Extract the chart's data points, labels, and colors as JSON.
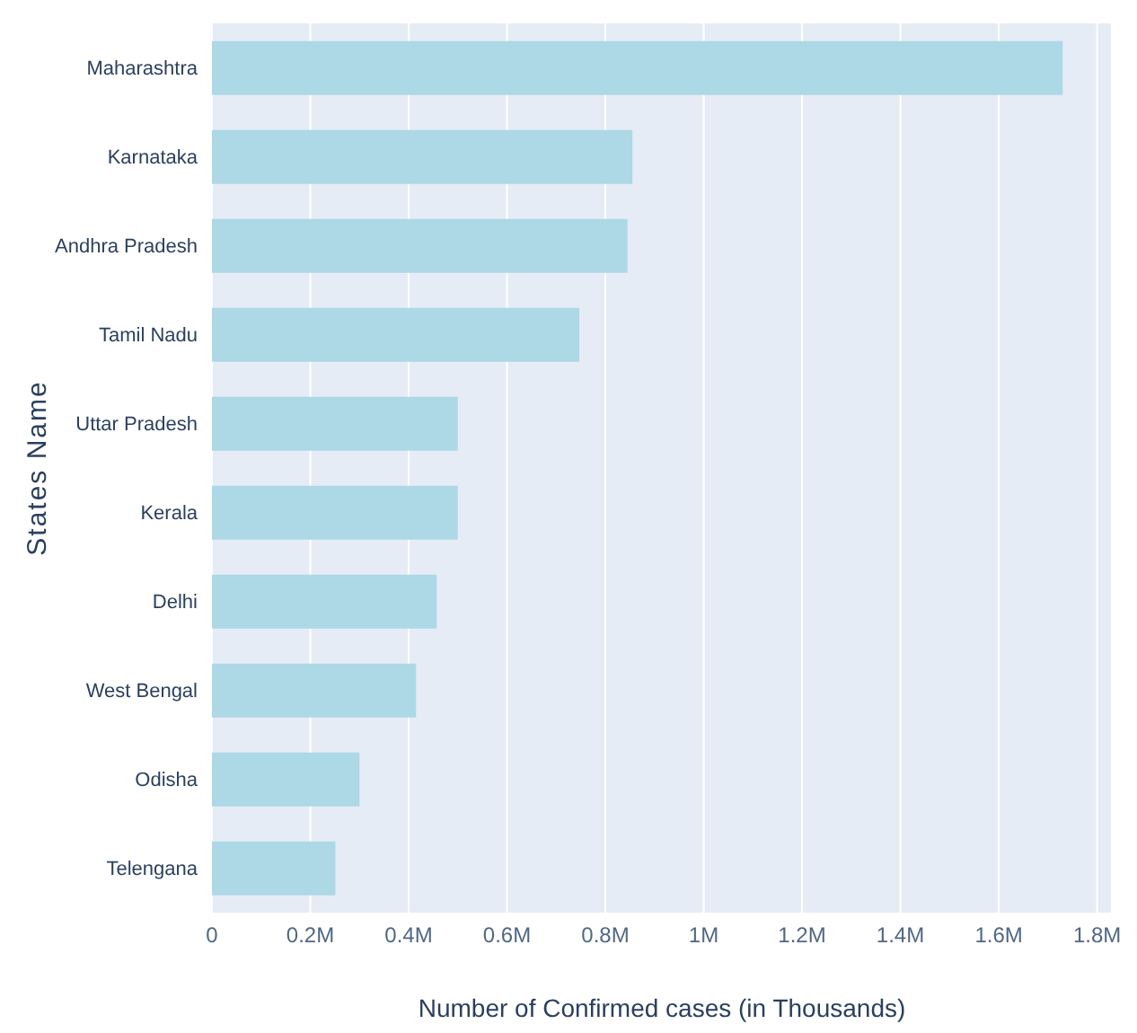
{
  "chart_data": {
    "type": "bar",
    "orientation": "horizontal",
    "xlabel": "Number of Confirmed cases (in Thousands)",
    "ylabel": "States Name",
    "categories": [
      "Maharashtra",
      "Karnataka",
      "Andhra Pradesh",
      "Tamil Nadu",
      "Uttar Pradesh",
      "Kerala",
      "Delhi",
      "West Bengal",
      "Odisha",
      "Telengana"
    ],
    "values": [
      1.73,
      0.855,
      0.845,
      0.747,
      0.5,
      0.5,
      0.457,
      0.415,
      0.3,
      0.251
    ],
    "color": "#add8e6",
    "xlim": [
      0,
      1.83
    ],
    "xticks": [
      {
        "value": 0,
        "label": "0"
      },
      {
        "value": 0.2,
        "label": "0.2M"
      },
      {
        "value": 0.4,
        "label": "0.4M"
      },
      {
        "value": 0.6,
        "label": "0.6M"
      },
      {
        "value": 0.8,
        "label": "0.8M"
      },
      {
        "value": 1,
        "label": "1M"
      },
      {
        "value": 1.2,
        "label": "1.2M"
      },
      {
        "value": 1.4,
        "label": "1.4M"
      },
      {
        "value": 1.6,
        "label": "1.6M"
      },
      {
        "value": 1.8,
        "label": "1.8M"
      }
    ],
    "grid": "x",
    "legend": false
  }
}
